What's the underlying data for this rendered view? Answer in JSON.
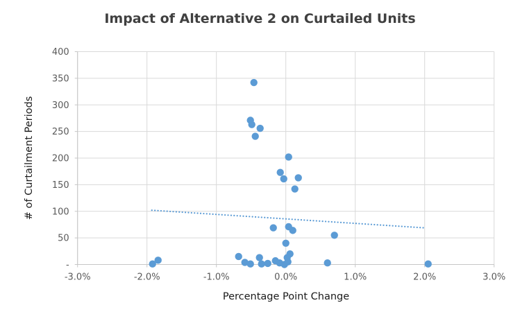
{
  "chart_data": {
    "type": "scatter",
    "title": "Impact of Alternative 2 on Curtailed Units",
    "xlabel": "Percentage Point Change",
    "ylabel": "# of Curtailment Periods",
    "xlim": [
      -3,
      3
    ],
    "ylim": [
      0,
      400
    ],
    "grid": true,
    "legend": "none",
    "x_ticks": [
      -3,
      -2,
      -1,
      0,
      1,
      2,
      3
    ],
    "x_tick_labels": [
      "-3.0%",
      "-2.0%",
      "-1.0%",
      "0.0%",
      "1.0%",
      "2.0%",
      "3.0%"
    ],
    "y_ticks": [
      0,
      50,
      100,
      150,
      200,
      250,
      300,
      350,
      400
    ],
    "y_tick_labels": [
      "-",
      "50",
      "100",
      "150",
      "200",
      "250",
      "300",
      "350",
      "400"
    ],
    "series": [
      {
        "name": "curtailed-units",
        "marker": "circle",
        "color": "#5B9BD5",
        "points": [
          [
            -1.92,
            1
          ],
          [
            -1.84,
            8
          ],
          [
            -0.68,
            15
          ],
          [
            -0.59,
            4
          ],
          [
            -0.51,
            1
          ],
          [
            -0.51,
            271
          ],
          [
            -0.49,
            263
          ],
          [
            -0.46,
            342
          ],
          [
            -0.44,
            241
          ],
          [
            -0.37,
            256
          ],
          [
            -0.38,
            13
          ],
          [
            -0.35,
            1
          ],
          [
            -0.26,
            2
          ],
          [
            -0.18,
            69
          ],
          [
            -0.15,
            7
          ],
          [
            -0.09,
            3
          ],
          [
            -0.08,
            173
          ],
          [
            -0.03,
            161
          ],
          [
            -0.02,
            0
          ],
          [
            0.0,
            40
          ],
          [
            0.02,
            13
          ],
          [
            0.03,
            5
          ],
          [
            0.04,
            202
          ],
          [
            0.04,
            71
          ],
          [
            0.06,
            20
          ],
          [
            0.1,
            64
          ],
          [
            0.13,
            142
          ],
          [
            0.18,
            163
          ],
          [
            0.6,
            3
          ],
          [
            0.7,
            55
          ],
          [
            2.05,
            1
          ]
        ]
      }
    ],
    "trendline": {
      "style": "dotted",
      "color": "#5B9BD5",
      "x1": -1.93,
      "y1": 102,
      "x2": 1.98,
      "y2": 69
    },
    "style": {
      "marker_color": "#5B9BD5",
      "trendline_color": "#5B9BD5",
      "grid_color": "#D9D9D9",
      "axis_color": "#C6C6C6",
      "tick_label_color": "#595959",
      "title_color": "#404040",
      "axis_title_color": "#1a1a1a"
    }
  }
}
